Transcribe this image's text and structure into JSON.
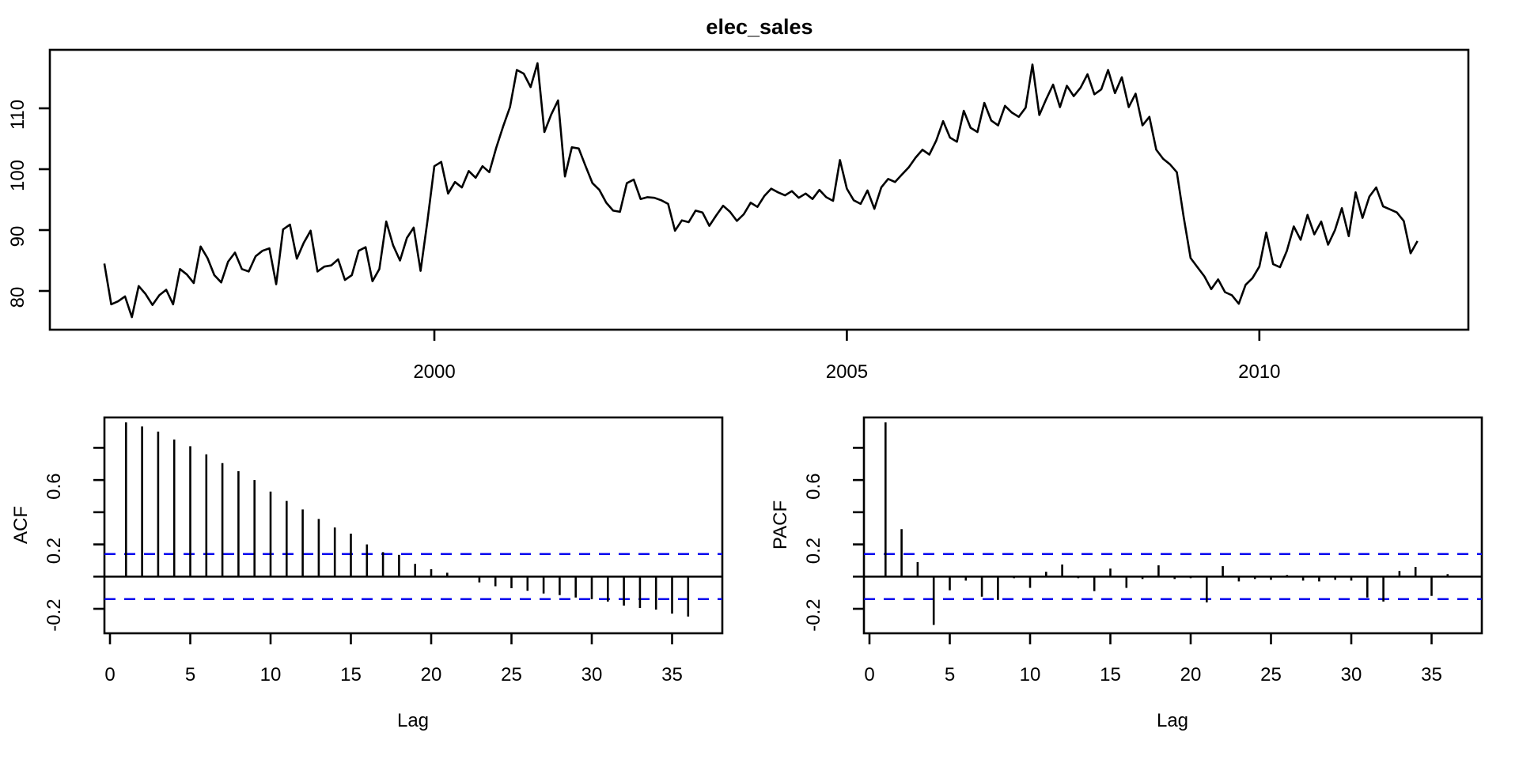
{
  "figure": {
    "background": "#ffffff",
    "line_color": "#000000",
    "ci_color": "#0000ee"
  },
  "chart_data": [
    {
      "id": "timeseries",
      "type": "line",
      "title": "elec_sales",
      "start_year": 1996,
      "frequency": 12,
      "x_tick_years": [
        2000,
        2005,
        2010
      ],
      "x_tick_labels": [
        "2000",
        "2005",
        "2010"
      ],
      "y_ticks": [
        80,
        90,
        100,
        110
      ],
      "y_tick_labels": [
        "80",
        "90",
        "100",
        "110"
      ],
      "ylim": [
        73.9,
        119.6
      ],
      "grid": false,
      "values": [
        84.5,
        77.8,
        78.3,
        79.1,
        75.7,
        80.8,
        79.5,
        77.7,
        79.3,
        80.2,
        77.8,
        83.6,
        82.7,
        81.3,
        87.3,
        85.4,
        82.6,
        81.4,
        84.8,
        86.3,
        83.6,
        83.2,
        85.7,
        86.6,
        87.0,
        81.1,
        90.1,
        90.9,
        85.3,
        87.9,
        89.9,
        83.2,
        84.0,
        84.2,
        85.2,
        81.8,
        82.6,
        86.6,
        87.2,
        81.6,
        83.6,
        91.4,
        87.5,
        85.0,
        88.7,
        90.4,
        83.3,
        91.5,
        100.5,
        101.2,
        96.0,
        97.9,
        97.0,
        99.7,
        98.6,
        100.5,
        99.5,
        103.5,
        107.0,
        110.2,
        116.3,
        115.7,
        113.5,
        117.4,
        106.1,
        109.0,
        111.3,
        98.8,
        103.6,
        103.4,
        100.5,
        97.7,
        96.6,
        94.5,
        93.2,
        93.0,
        97.7,
        98.3,
        95.1,
        95.4,
        95.3,
        94.9,
        94.3,
        89.9,
        91.6,
        91.3,
        93.2,
        92.9,
        90.7,
        92.4,
        94.0,
        93.0,
        91.5,
        92.6,
        94.5,
        93.8,
        95.6,
        96.8,
        96.2,
        95.7,
        96.4,
        95.3,
        96.0,
        95.1,
        96.6,
        95.4,
        94.8,
        101.5,
        96.8,
        94.9,
        94.3,
        96.5,
        93.5,
        97.0,
        98.4,
        97.9,
        99.1,
        100.3,
        101.9,
        103.2,
        102.4,
        104.7,
        107.9,
        105.2,
        104.5,
        109.6,
        106.8,
        106.1,
        110.9,
        108.0,
        107.2,
        110.4,
        109.3,
        108.6,
        110.1,
        117.2,
        108.9,
        111.5,
        113.9,
        110.2,
        113.7,
        112.0,
        113.4,
        115.6,
        112.3,
        113.1,
        116.3,
        112.5,
        115.1,
        110.2,
        112.4,
        107.2,
        108.6,
        103.2,
        101.7,
        100.8,
        99.5,
        92.1,
        85.4,
        83.9,
        82.4,
        80.3,
        81.9,
        79.8,
        79.3,
        77.9,
        81.0,
        82.1,
        84.0,
        89.6,
        84.4,
        83.9,
        86.6,
        90.6,
        88.4,
        92.5,
        89.3,
        91.4,
        87.6,
        90.0,
        93.6,
        89.0,
        96.2,
        92.0,
        95.5,
        97.0,
        93.9,
        93.4,
        92.9,
        91.5,
        86.2,
        88.2
      ]
    },
    {
      "id": "acf",
      "type": "bar",
      "ylabel": "ACF",
      "xlabel": "Lag",
      "x_ticks": [
        0,
        5,
        10,
        15,
        20,
        25,
        30,
        35
      ],
      "x_tick_labels": [
        "0",
        "5",
        "10",
        "15",
        "20",
        "25",
        "30",
        "35"
      ],
      "y_ticks_minor": [
        -0.2,
        0,
        0.2,
        0.4,
        0.6,
        0.8
      ],
      "y_ticks_labeled": [
        -0.2,
        0.2,
        0.6
      ],
      "y_tick_labels": [
        "-0.2",
        "0.2",
        "0.6"
      ],
      "conf_band": 0.14,
      "ylim": [
        -0.33,
        0.97
      ],
      "lags": [
        1,
        2,
        3,
        4,
        5,
        6,
        7,
        8,
        9,
        10,
        11,
        12,
        13,
        14,
        15,
        16,
        17,
        18,
        19,
        20,
        21,
        22,
        23,
        24,
        25,
        26,
        27,
        28,
        29,
        30,
        31,
        32,
        33,
        34,
        35,
        36
      ],
      "values": [
        0.958,
        0.933,
        0.901,
        0.852,
        0.81,
        0.76,
        0.705,
        0.655,
        0.6,
        0.528,
        0.47,
        0.417,
        0.358,
        0.305,
        0.267,
        0.2,
        0.152,
        0.135,
        0.079,
        0.046,
        0.024,
        -0.005,
        -0.036,
        -0.06,
        -0.072,
        -0.088,
        -0.105,
        -0.115,
        -0.13,
        -0.14,
        -0.155,
        -0.18,
        -0.195,
        -0.205,
        -0.23,
        -0.248
      ]
    },
    {
      "id": "pacf",
      "type": "bar",
      "ylabel": "PACF",
      "xlabel": "Lag",
      "x_ticks": [
        0,
        5,
        10,
        15,
        20,
        25,
        30,
        35
      ],
      "x_tick_labels": [
        "0",
        "5",
        "10",
        "15",
        "20",
        "25",
        "30",
        "35"
      ],
      "y_ticks_minor": [
        -0.2,
        0,
        0.2,
        0.4,
        0.6,
        0.8
      ],
      "y_ticks_labeled": [
        -0.2,
        0.2,
        0.6
      ],
      "y_tick_labels": [
        "-0.2",
        "0.2",
        "0.6"
      ],
      "conf_band": 0.14,
      "ylim": [
        -0.33,
        0.97
      ],
      "lags": [
        1,
        2,
        3,
        4,
        5,
        6,
        7,
        8,
        9,
        10,
        11,
        12,
        13,
        14,
        15,
        16,
        17,
        18,
        19,
        20,
        21,
        22,
        23,
        24,
        25,
        26,
        27,
        28,
        29,
        30,
        31,
        32,
        33,
        34,
        35,
        36
      ],
      "values": [
        0.958,
        0.295,
        0.09,
        -0.3,
        -0.085,
        -0.025,
        -0.125,
        -0.145,
        -0.01,
        -0.07,
        0.03,
        0.075,
        -0.01,
        -0.09,
        0.05,
        -0.07,
        -0.015,
        0.07,
        -0.015,
        -0.01,
        -0.16,
        0.065,
        -0.03,
        -0.015,
        -0.02,
        0.01,
        -0.025,
        -0.03,
        -0.02,
        -0.025,
        -0.13,
        -0.155,
        0.035,
        0.06,
        -0.12,
        0.015
      ]
    }
  ]
}
